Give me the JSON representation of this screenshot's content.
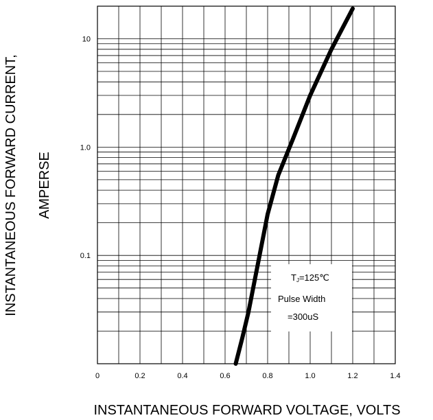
{
  "chart_data": {
    "type": "line",
    "title": "",
    "xlabel": "INSTANTANEOUS FORWARD VOLTAGE,  VOLTS",
    "ylabel_lines": [
      "INSTANTANEOUS FORWARD CURRENT,",
      "AMPERSE"
    ],
    "xlim": [
      0,
      1.4
    ],
    "ylim": [
      0.01,
      20
    ],
    "yscale": "log",
    "grid": true,
    "x_ticks": [
      "0",
      "0.2",
      "0.4",
      "0.6",
      "0.8",
      "1.0",
      "1.2",
      "1.4"
    ],
    "y_ticks": [
      {
        "value": 0.1,
        "label": "0.1"
      },
      {
        "value": 1.0,
        "label": "1.0"
      },
      {
        "value": 10,
        "label": "10"
      }
    ],
    "series": [
      {
        "x": [
          0.65,
          0.68,
          0.71,
          0.74,
          0.77,
          0.8,
          0.85,
          0.92,
          1.0,
          1.1,
          1.2
        ],
        "y": [
          0.01,
          0.017,
          0.03,
          0.06,
          0.12,
          0.24,
          0.55,
          1.2,
          3.0,
          8.0,
          19.0
        ]
      }
    ],
    "annotation": {
      "condition_main": "T",
      "condition_sub": "J",
      "condition_value": "=125℃",
      "line2": "Pulse Width",
      "line3": "=300uS"
    }
  }
}
